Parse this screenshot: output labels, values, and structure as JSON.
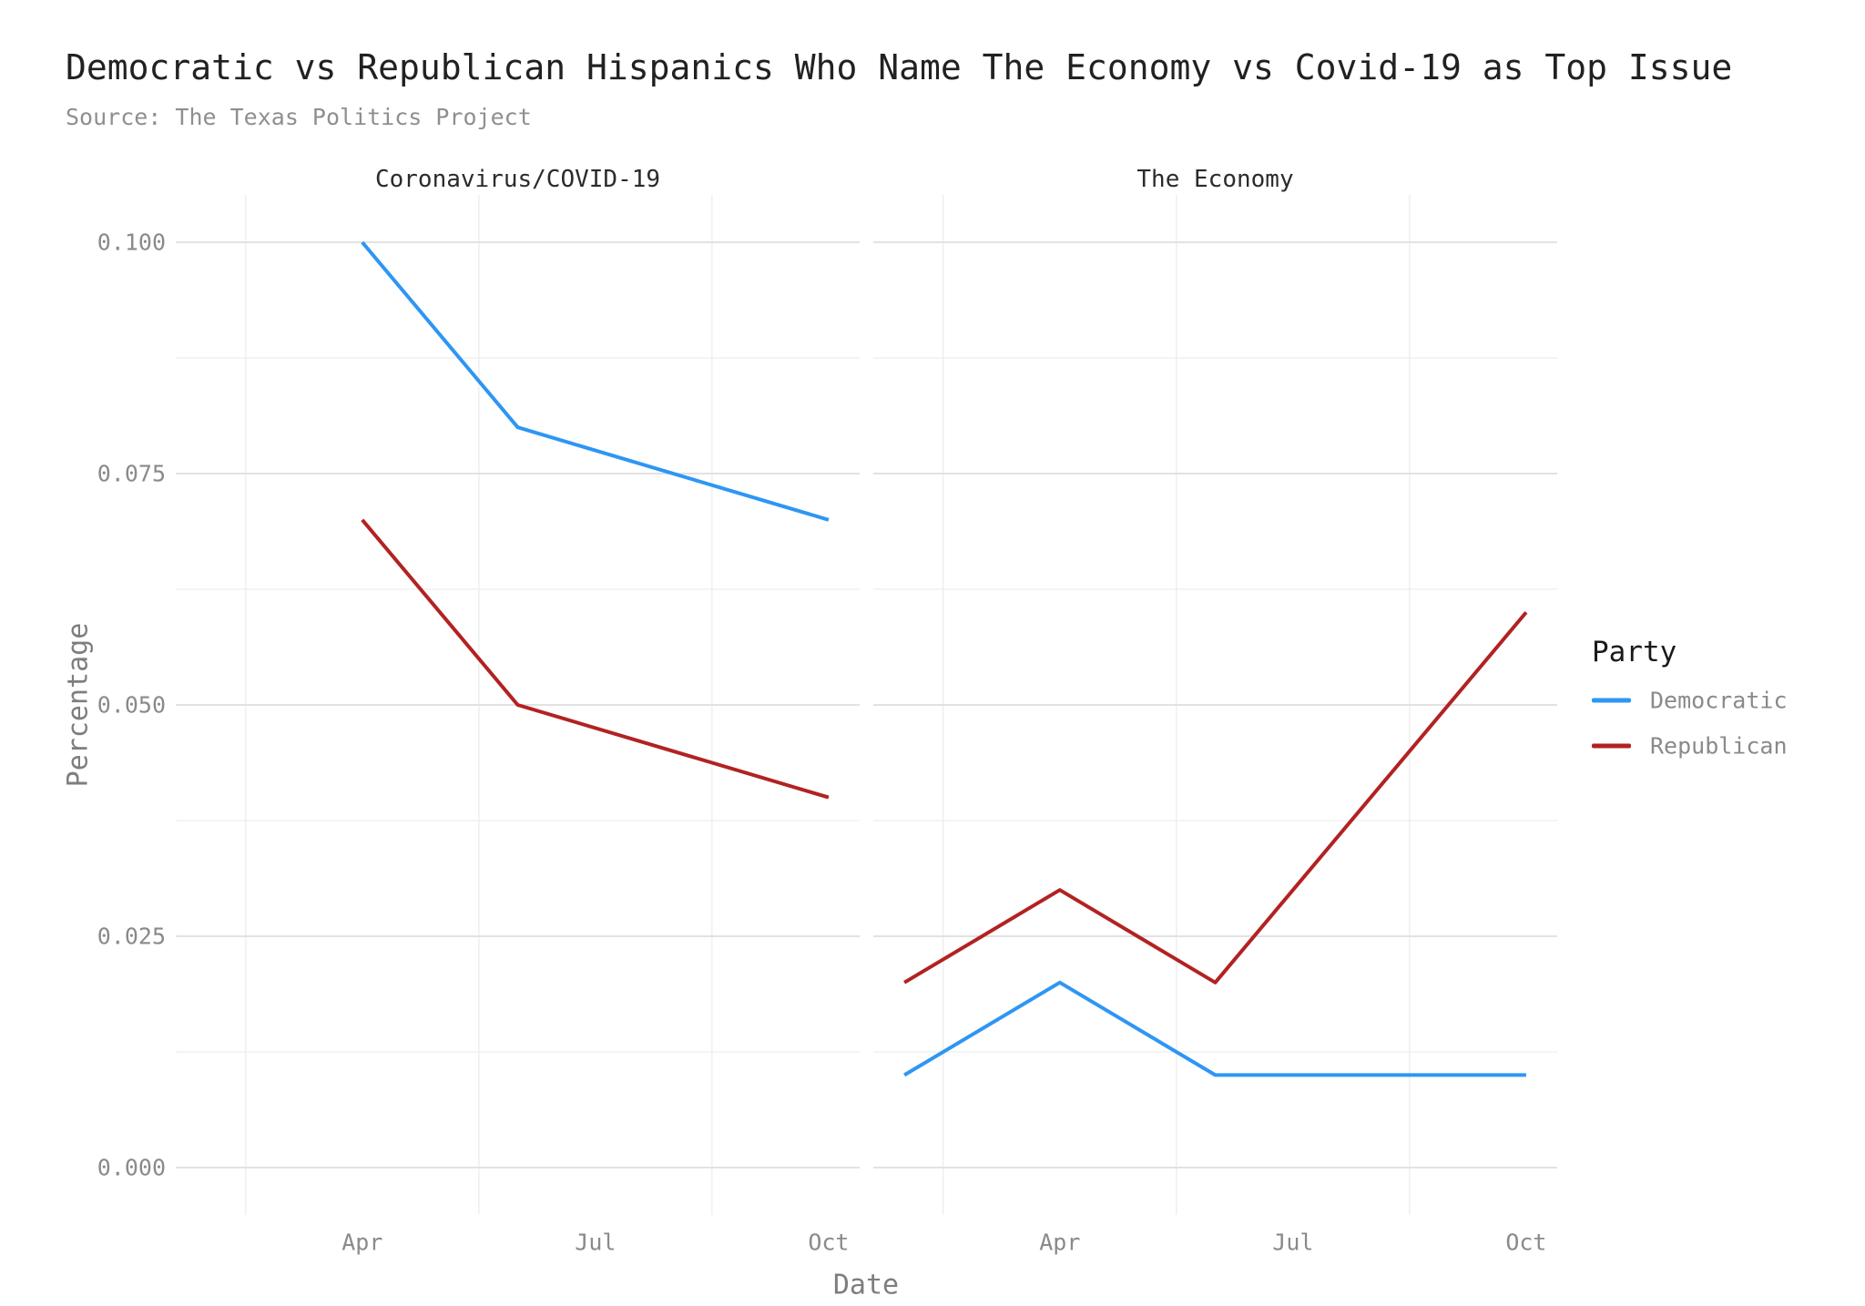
{
  "header": {
    "title": "Democratic vs Republican Hispanics Who Name The Economy vs Covid-19 as Top Issue",
    "subtitle": "Source: The Texas Politics Project"
  },
  "legend": {
    "title": "Party",
    "items": [
      {
        "label": "Democratic",
        "color": "#2E96F3"
      },
      {
        "label": "Republican",
        "color": "#B22222"
      }
    ]
  },
  "colors": {
    "democratic": "#2E96F3",
    "republican": "#B22222",
    "grid_major": "#e2e2e2",
    "grid_minor": "#ededed",
    "tick_text": "#8a8a8a",
    "title_text": "#212121",
    "subtitle_text": "#8f8f8f"
  },
  "chart_data": {
    "type": "line",
    "title": "Democratic vs Republican Hispanics Who Name The Economy vs Covid-19 as Top Issue",
    "subtitle": "Source: The Texas Politics Project",
    "xlabel": "Date",
    "ylabel": "Percentage",
    "legend_title": "Party",
    "legend_position": "right",
    "grid": true,
    "x_range_months": [
      2,
      10
    ],
    "ylim": [
      0,
      0.1
    ],
    "x_ticks": [
      {
        "month": 4,
        "label": "Apr"
      },
      {
        "month": 7,
        "label": "Jul"
      },
      {
        "month": 10,
        "label": "Oct"
      }
    ],
    "x_minor_months": [
      2.5,
      5.5,
      8.5
    ],
    "y_ticks": [
      {
        "value": 0.1,
        "label": "0.100"
      },
      {
        "value": 0.075,
        "label": "0.075"
      },
      {
        "value": 0.05,
        "label": "0.050"
      },
      {
        "value": 0.025,
        "label": "0.025"
      },
      {
        "value": 0.0,
        "label": "0.000"
      }
    ],
    "y_minor": [
      0.0125,
      0.0375,
      0.0625,
      0.0875
    ],
    "facets": [
      {
        "label": "Coronavirus/COVID-19",
        "series": [
          {
            "name": "Democratic",
            "color": "#2E96F3",
            "points": [
              {
                "month": 4,
                "value": 0.1
              },
              {
                "month": 6,
                "value": 0.08
              },
              {
                "month": 10,
                "value": 0.07
              }
            ]
          },
          {
            "name": "Republican",
            "color": "#B22222",
            "points": [
              {
                "month": 4,
                "value": 0.07
              },
              {
                "month": 6,
                "value": 0.05
              },
              {
                "month": 10,
                "value": 0.04
              }
            ]
          }
        ]
      },
      {
        "label": "The Economy",
        "series": [
          {
            "name": "Democratic",
            "color": "#2E96F3",
            "points": [
              {
                "month": 2,
                "value": 0.01
              },
              {
                "month": 4,
                "value": 0.02
              },
              {
                "month": 6,
                "value": 0.01
              },
              {
                "month": 10,
                "value": 0.01
              }
            ]
          },
          {
            "name": "Republican",
            "color": "#B22222",
            "points": [
              {
                "month": 2,
                "value": 0.02
              },
              {
                "month": 4,
                "value": 0.03
              },
              {
                "month": 6,
                "value": 0.02
              },
              {
                "month": 10,
                "value": 0.06
              }
            ]
          }
        ]
      }
    ]
  }
}
